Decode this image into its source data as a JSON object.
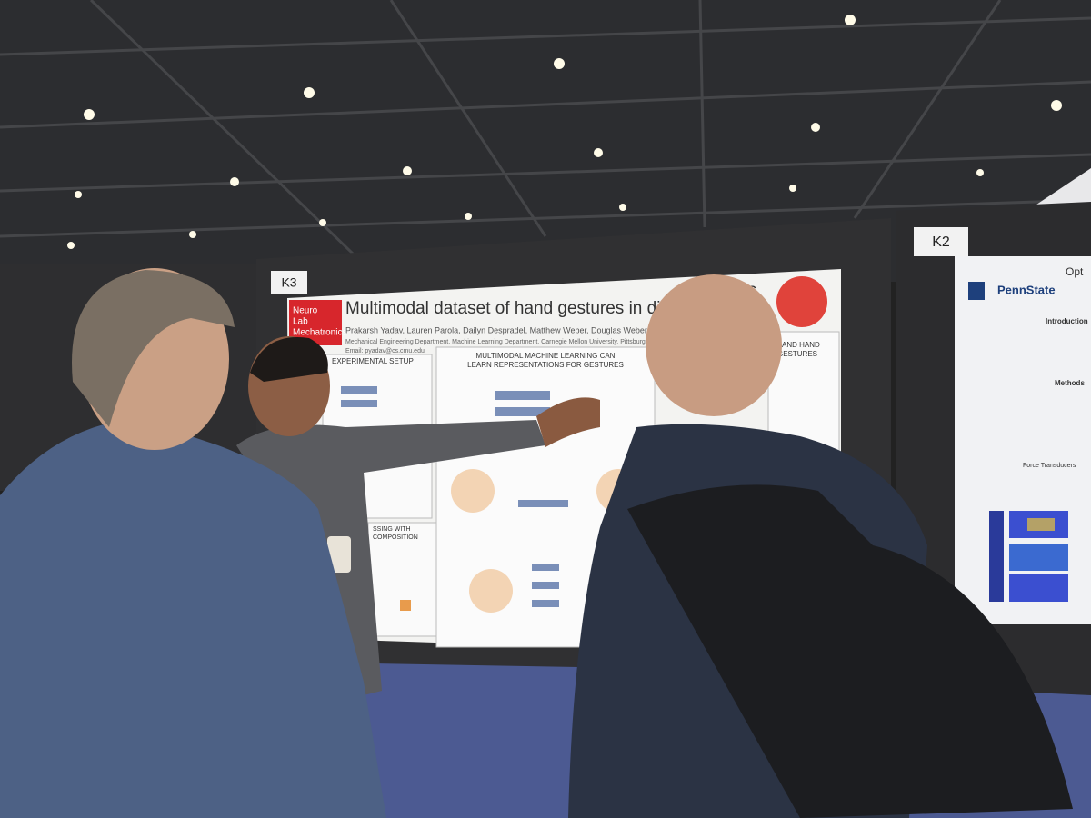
{
  "signs": {
    "left_board": "K3",
    "right_board": "K2"
  },
  "poster_k3": {
    "logo": [
      "Neuro",
      "Lab",
      "Mechatronics"
    ],
    "title": "Multimodal dataset of hand gestures in different ar",
    "title_end": "ns",
    "authors": "Prakarsh Yadav, Lauren Parola, Dailyn Despradel, Matthew Weber, Douglas Weber",
    "affiliation": "Mechanical Engineering Department, Machine Learning Department, Carnegie Mellon University, Pittsburgh, PA",
    "email": "Email: pyadav@cs.cmu.edu",
    "section_left": "EXPERIMENTAL SETUP",
    "section_center": [
      "MULTIMODAL MACHINE LEARNING CAN",
      "LEARN REPRESENTATIONS FOR GESTURES"
    ],
    "section_right": "AND HAND",
    "section_right2": "GESTURES",
    "section_bottom_left": [
      "SSING WITH",
      "COMPOSITION"
    ]
  },
  "poster_k2": {
    "brand": "PennState",
    "title_part": "Opt",
    "introduction": "Introduction",
    "methods": "Methods",
    "force": "Force Transducers"
  }
}
